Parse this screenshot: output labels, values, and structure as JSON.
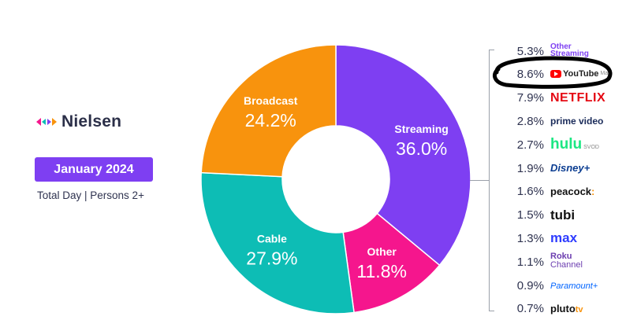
{
  "brand": {
    "name": "Nielsen",
    "logo_icon": "nielsen-arrows-icon"
  },
  "period": "January 2024",
  "scope": "Total Day | Persons 2+",
  "colors": {
    "streaming": "#7e3ff2",
    "other": "#f5168d",
    "cable": "#0dbdb5",
    "broadcast": "#f8930d",
    "period_badge": "#7e3ff2"
  },
  "chart_data": [
    {
      "type": "pie",
      "slices": [
        {
          "label": "Streaming",
          "value": 36.0,
          "value_label": "36.0%"
        },
        {
          "label": "Other",
          "value": 11.8,
          "value_label": "11.8%"
        },
        {
          "label": "Cable",
          "value": 27.9,
          "value_label": "27.9%"
        },
        {
          "label": "Broadcast",
          "value": 24.2,
          "value_label": "24.2%"
        }
      ]
    },
    {
      "type": "table",
      "rows": [
        {
          "value": 5.3,
          "value_label": "5.3%",
          "service": "Other Streaming"
        },
        {
          "value": 8.6,
          "value_label": "8.6%",
          "service": "YouTube Main"
        },
        {
          "value": 7.9,
          "value_label": "7.9%",
          "service": "NETFLIX"
        },
        {
          "value": 2.8,
          "value_label": "2.8%",
          "service": "prime video"
        },
        {
          "value": 2.7,
          "value_label": "2.7%",
          "service": "hulu SVOD"
        },
        {
          "value": 1.9,
          "value_label": "1.9%",
          "service": "Disney+"
        },
        {
          "value": 1.6,
          "value_label": "1.6%",
          "service": "peacock"
        },
        {
          "value": 1.5,
          "value_label": "1.5%",
          "service": "tubi"
        },
        {
          "value": 1.3,
          "value_label": "1.3%",
          "service": "max"
        },
        {
          "value": 1.1,
          "value_label": "1.1%",
          "service": "Roku Channel"
        },
        {
          "value": 0.9,
          "value_label": "0.9%",
          "service": "Paramount+"
        },
        {
          "value": 0.7,
          "value_label": "0.7%",
          "service": "pluto tv"
        }
      ]
    }
  ],
  "annotation": "hand-drawn black circle around YouTube row"
}
